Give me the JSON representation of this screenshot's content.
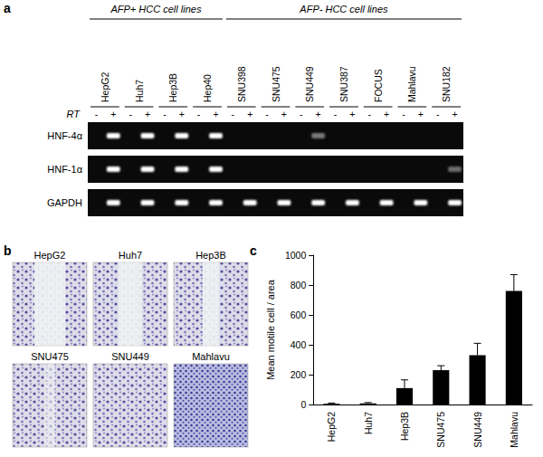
{
  "panel_labels": [
    "a",
    "b",
    "c"
  ],
  "gel": {
    "groups": [
      {
        "label": "AFP+ HCC cell lines",
        "cell_lines": [
          "HepG2",
          "Huh7",
          "Hep3B",
          "Hep40"
        ]
      },
      {
        "label": "AFP- HCC cell lines",
        "cell_lines": [
          "SNU398",
          "SNU475",
          "SNU449",
          "SNU387",
          "FOCUS",
          "Mahlavu",
          "SNU182"
        ]
      }
    ],
    "rt_label": "RT",
    "rt_lanes": [
      "-",
      "+"
    ],
    "rows": [
      {
        "gene": "HNF-4α",
        "minus": [
          0,
          0,
          0,
          0,
          0,
          0,
          0,
          0,
          0,
          0,
          0
        ],
        "plus": [
          1,
          1,
          1,
          1,
          0,
          0,
          0.45,
          0,
          0,
          0,
          0
        ]
      },
      {
        "gene": "HNF-1α",
        "minus": [
          0,
          0,
          0,
          0,
          0,
          0,
          0,
          0,
          0,
          0,
          0
        ],
        "plus": [
          1,
          1,
          1,
          1,
          0,
          0,
          0,
          0,
          0,
          0,
          0.4
        ]
      },
      {
        "gene": "GAPDH",
        "minus": [
          0,
          0,
          0,
          0,
          0,
          0,
          0,
          0,
          0,
          0,
          0
        ],
        "plus": [
          1,
          1,
          1,
          1,
          1,
          1,
          1,
          1,
          1,
          1,
          1
        ]
      }
    ]
  },
  "images": {
    "labels": [
      "HepG2",
      "Huh7",
      "Hep3B",
      "SNU475",
      "SNU449",
      "Mahlavu"
    ]
  },
  "chart_data": {
    "type": "bar",
    "categories": [
      "HepG2",
      "Huh7",
      "Hep3B",
      "SNU475",
      "SNU449",
      "Mahlavu"
    ],
    "values": [
      5,
      8,
      110,
      230,
      330,
      760
    ],
    "error": [
      5,
      5,
      55,
      30,
      80,
      110
    ],
    "color": "#000000",
    "y_label": "Mean motile cell / area",
    "ylim": [
      0,
      1000
    ],
    "yticks": [
      0,
      200,
      400,
      600,
      800,
      1000
    ],
    "grid": false
  }
}
